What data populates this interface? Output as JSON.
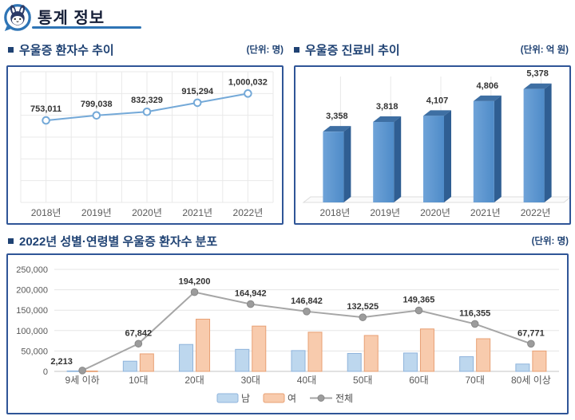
{
  "header": {
    "title": "통계 정보",
    "mascot_icon": "rabbit-mascot-icon",
    "underline_color": "#2E74B5"
  },
  "sections": {
    "patients": {
      "title": "우울증 환자수 추이",
      "unit": "(단위: 명)"
    },
    "cost": {
      "title": "우울증 진료비 추이",
      "unit": "(단위: 억 원)"
    },
    "distribution": {
      "title": "2022년 성별·연령별 우울증 환자수 분포",
      "unit": "(단위: 명)"
    }
  },
  "colors": {
    "panel_border": "#2F5597",
    "section_title": "#1F4273",
    "grid": "#E9E9E9",
    "line_blue": "#74A9D8",
    "bar3d_front": "#4E8BC8",
    "bar3d_front_light": "#6FA3D8",
    "bar3d_top": "#3E6FA3",
    "bar3d_side": "#2F5E92",
    "male_fill": "#BDD7EE",
    "male_border": "#8FB4DC",
    "female_fill": "#F8CBAD",
    "female_border": "#E8A074",
    "total_line": "#A6A6A6"
  },
  "chart_data": [
    {
      "type": "line",
      "title": "우울증 환자수 추이",
      "unit_label": "(단위: 명)",
      "categories": [
        "2018년",
        "2019년",
        "2020년",
        "2021년",
        "2022년"
      ],
      "values": [
        753011,
        799038,
        832329,
        915294,
        1000032
      ],
      "labels": [
        "753,011",
        "799,038",
        "832,329",
        "915,294",
        "1,000,032"
      ],
      "ylim": [
        0,
        1200000
      ],
      "grid": true,
      "legend": false,
      "line_color": "#74A9D8",
      "marker": "open-circle"
    },
    {
      "type": "bar",
      "style": "3d-column",
      "title": "우울증 진료비 추이",
      "unit_label": "(단위: 억 원)",
      "categories": [
        "2018년",
        "2019년",
        "2020년",
        "2021년",
        "2022년"
      ],
      "values": [
        3358,
        3818,
        4107,
        4806,
        5378
      ],
      "labels": [
        "3,358",
        "3,818",
        "4,107",
        "4,806",
        "5,378"
      ],
      "ylim": [
        0,
        6200
      ],
      "grid": false,
      "legend": false,
      "colors": {
        "front": "#4E8BC8",
        "front_light": "#6FA3D8",
        "top": "#3E6FA3",
        "side": "#2F5E92"
      }
    },
    {
      "type": "bar",
      "subtype": "grouped-bars-with-line",
      "title": "2022년 성별·연령별 우울증 환자수 분포",
      "unit_label": "(단위: 명)",
      "categories": [
        "9세 이하",
        "10대",
        "20대",
        "30대",
        "40대",
        "50대",
        "60대",
        "70대",
        "80세 이상"
      ],
      "series": [
        {
          "name": "남",
          "type": "bar",
          "color": "#BDD7EE",
          "border": "#8FB4DC",
          "estimated": true,
          "values": [
            1200,
            25000,
            66000,
            54000,
            51000,
            44000,
            45000,
            36000,
            18000
          ]
        },
        {
          "name": "여",
          "type": "bar",
          "color": "#F8CBAD",
          "border": "#E8A074",
          "estimated": true,
          "values": [
            1000,
            43000,
            128000,
            111000,
            96000,
            88000,
            104000,
            80000,
            50000
          ]
        },
        {
          "name": "전체",
          "type": "line",
          "color": "#A6A6A6",
          "values": [
            2213,
            67842,
            194200,
            164942,
            146842,
            132525,
            149365,
            116355,
            67771
          ],
          "labels": [
            "2,213",
            "67,842",
            "194,200",
            "164,942",
            "146,842",
            "132,525",
            "149,365",
            "116,355",
            "67,771"
          ]
        }
      ],
      "ylim": [
        0,
        250000
      ],
      "yticks": [
        "0",
        "50,000",
        "100,000",
        "150,000",
        "200,000",
        "250,000"
      ],
      "grid": true,
      "legend_position": "bottom"
    }
  ]
}
